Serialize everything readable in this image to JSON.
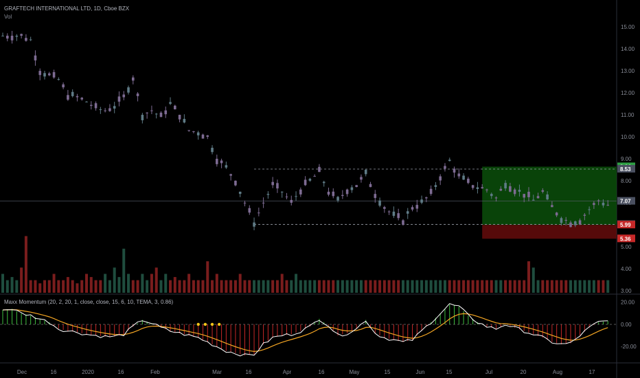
{
  "header": {
    "symbol_line": "GRAFTECH INTERNATIONAL LTD, 1D, Cboe BZX",
    "volume_label": "Vol"
  },
  "indicator": {
    "label": "Maxx Momentum (20, 2, 20, 1, close, close, 15, 6, 10, TEMA, 3, 0.86)"
  },
  "colors": {
    "background": "#000000",
    "candle": "#7d6b92",
    "candle_alt": "#5f7b86",
    "vol_up": "#1f4d3e",
    "vol_down": "#7a1d1d",
    "hist_up": "#3fbf3f",
    "hist_down": "#c62828",
    "osc_line": "#ffffff",
    "signal_line": "#f5a623",
    "target_zone": "#0c5a0c",
    "stop_zone": "#6b0d0d",
    "dots": "#f5c518"
  },
  "chart_data": [
    {
      "type": "candlestick",
      "title": "GRAFTECH INTERNATIONAL LTD, 1D, Cboe BZX",
      "y_axis_ticks": [
        "15.00",
        "14.00",
        "13.00",
        "12.00",
        "11.00",
        "10.00",
        "9.00",
        "8.00",
        "7.00",
        "6.00",
        "5.00",
        "4.00",
        "3.00"
      ],
      "ylim": [
        2.9,
        15.6
      ],
      "x_axis_ticks": [
        "Dec",
        "16",
        "2020",
        "16",
        "Feb",
        "Mar",
        "16",
        "Apr",
        "16",
        "May",
        "15",
        "Jun",
        "15",
        "Jul",
        "20",
        "Aug",
        "17"
      ],
      "close_path": [
        [
          0,
          14.6
        ],
        [
          4,
          14.6
        ],
        [
          6,
          14.4
        ],
        [
          8,
          13.0
        ],
        [
          10,
          12.8
        ],
        [
          12,
          12.6
        ],
        [
          14,
          11.9
        ],
        [
          16,
          11.8
        ],
        [
          18,
          11.6
        ],
        [
          20,
          11.3
        ],
        [
          22,
          11.2
        ],
        [
          24,
          11.4
        ],
        [
          26,
          11.8
        ],
        [
          28,
          12.7
        ],
        [
          30,
          11.0
        ],
        [
          32,
          11.2
        ],
        [
          34,
          10.9
        ],
        [
          36,
          11.5
        ],
        [
          38,
          11.0
        ],
        [
          40,
          10.3
        ],
        [
          42,
          10.2
        ],
        [
          44,
          10.0
        ],
        [
          46,
          9.0
        ],
        [
          48,
          8.6
        ],
        [
          50,
          8.0
        ],
        [
          52,
          7.0
        ],
        [
          54,
          6.1
        ],
        [
          56,
          7.0
        ],
        [
          58,
          7.8
        ],
        [
          60,
          7.5
        ],
        [
          62,
          7.0
        ],
        [
          64,
          7.6
        ],
        [
          66,
          8.0
        ],
        [
          68,
          8.4
        ],
        [
          70,
          7.5
        ],
        [
          72,
          7.1
        ],
        [
          74,
          7.6
        ],
        [
          76,
          7.8
        ],
        [
          78,
          8.3
        ],
        [
          80,
          7.4
        ],
        [
          82,
          6.8
        ],
        [
          84,
          6.4
        ],
        [
          86,
          6.2
        ],
        [
          88,
          6.8
        ],
        [
          90,
          7.0
        ],
        [
          92,
          7.4
        ],
        [
          94,
          8.2
        ],
        [
          96,
          8.9
        ],
        [
          98,
          8.2
        ],
        [
          100,
          7.9
        ],
        [
          102,
          7.7
        ],
        [
          104,
          7.6
        ],
        [
          106,
          7.2
        ],
        [
          108,
          7.9
        ],
        [
          110,
          7.6
        ],
        [
          112,
          7.4
        ],
        [
          114,
          7.1
        ],
        [
          116,
          7.5
        ],
        [
          118,
          6.8
        ],
        [
          120,
          6.3
        ],
        [
          122,
          6.1
        ],
        [
          124,
          6.2
        ],
        [
          126,
          6.7
        ],
        [
          128,
          7.1
        ],
        [
          130,
          6.9
        ]
      ],
      "horizontal_levels": [
        {
          "value": 8.64,
          "label": "8.64",
          "style": "badge-green"
        },
        {
          "value": 8.53,
          "label": "8.53",
          "style": "badge-grey",
          "dashed": true
        },
        {
          "value": 7.07,
          "label": "7.07",
          "style": "badge-grey"
        },
        {
          "value": 6.01,
          "label": "6.01",
          "style": "badge-grey",
          "dashed": true
        },
        {
          "value": 5.99,
          "label": "5.99",
          "style": "badge-red"
        },
        {
          "value": 5.36,
          "label": "5.36",
          "style": "badge-red"
        }
      ],
      "position_zone": {
        "entry": 5.99,
        "target": 8.64,
        "stop": 5.36,
        "start_index": 103,
        "end_index": 130
      }
    },
    {
      "type": "bar",
      "title": "Vol",
      "series": [
        {
          "values": [
            3,
            2,
            2.5,
            2,
            4,
            9,
            2,
            2,
            1.5,
            2,
            2,
            3,
            2,
            2,
            2.5,
            2,
            1.5,
            2,
            3,
            2.5,
            2,
            2,
            3,
            2,
            4,
            2.5,
            7,
            3,
            2,
            2,
            3,
            2,
            3,
            4,
            2,
            3,
            2,
            2.5,
            2,
            2,
            3,
            2,
            2,
            2,
            5,
            2,
            3,
            2,
            2,
            2,
            2,
            3,
            2,
            2,
            2,
            2,
            2,
            2,
            2,
            2,
            3,
            2,
            2,
            3,
            2,
            2,
            2,
            2,
            2,
            2,
            2,
            2,
            2,
            2,
            2,
            2,
            2,
            2,
            2,
            2,
            2,
            2,
            2,
            2,
            2,
            2,
            2,
            2,
            2,
            2,
            2,
            2,
            2,
            2,
            2,
            2,
            2,
            2,
            2,
            2,
            2,
            2,
            2,
            2,
            2,
            2,
            2,
            2,
            2,
            2,
            2,
            2,
            2,
            5,
            4,
            2,
            2,
            2,
            2,
            2,
            2,
            2,
            2,
            2,
            2,
            2,
            2,
            2,
            2,
            2,
            2
          ]
        }
      ]
    },
    {
      "type": "line",
      "title": "Maxx Momentum (20, 2, 20, 1, close, close, 15, 6, 10, TEMA, 3, 0.86)",
      "y_axis_ticks": [
        "20.00",
        "0.00",
        "-20.00"
      ],
      "ylim": [
        -31,
        26
      ],
      "zero_line": true,
      "series": [
        {
          "name": "",
          "path": [
            [
              0,
              13
            ],
            [
              2,
              14
            ],
            [
              4,
              10
            ],
            [
              6,
              8
            ],
            [
              8,
              5
            ],
            [
              10,
              2
            ],
            [
              12,
              -4
            ],
            [
              14,
              -6
            ],
            [
              16,
              -7
            ],
            [
              18,
              -9
            ],
            [
              20,
              -10
            ],
            [
              22,
              -11
            ],
            [
              24,
              -11
            ],
            [
              26,
              -9
            ],
            [
              28,
              -2
            ],
            [
              30,
              4
            ],
            [
              32,
              1
            ],
            [
              34,
              -3
            ],
            [
              36,
              -6
            ],
            [
              38,
              -8
            ],
            [
              40,
              -10
            ],
            [
              42,
              -12
            ],
            [
              44,
              -16
            ],
            [
              46,
              -20
            ],
            [
              48,
              -24
            ],
            [
              50,
              -26
            ],
            [
              52,
              -28
            ],
            [
              54,
              -27
            ],
            [
              56,
              -18
            ],
            [
              58,
              -12
            ],
            [
              60,
              -10
            ],
            [
              62,
              -9
            ],
            [
              64,
              -6
            ],
            [
              66,
              -2
            ],
            [
              68,
              5
            ],
            [
              70,
              -1
            ],
            [
              72,
              -10
            ],
            [
              74,
              -8
            ],
            [
              76,
              -4
            ],
            [
              78,
              4
            ],
            [
              80,
              -8
            ],
            [
              82,
              -12
            ],
            [
              84,
              -14
            ],
            [
              86,
              -16
            ],
            [
              88,
              -14
            ],
            [
              90,
              -6
            ],
            [
              92,
              2
            ],
            [
              94,
              10
            ],
            [
              96,
              18
            ],
            [
              98,
              16
            ],
            [
              100,
              8
            ],
            [
              102,
              2
            ],
            [
              104,
              -2
            ],
            [
              106,
              -4
            ],
            [
              108,
              0
            ],
            [
              110,
              -3
            ],
            [
              112,
              -6
            ],
            [
              114,
              -9
            ],
            [
              116,
              -12
            ],
            [
              118,
              -16
            ],
            [
              120,
              -18
            ],
            [
              122,
              -17
            ],
            [
              124,
              -10
            ],
            [
              126,
              -3
            ],
            [
              128,
              2
            ],
            [
              130,
              3
            ]
          ]
        }
      ]
    }
  ]
}
